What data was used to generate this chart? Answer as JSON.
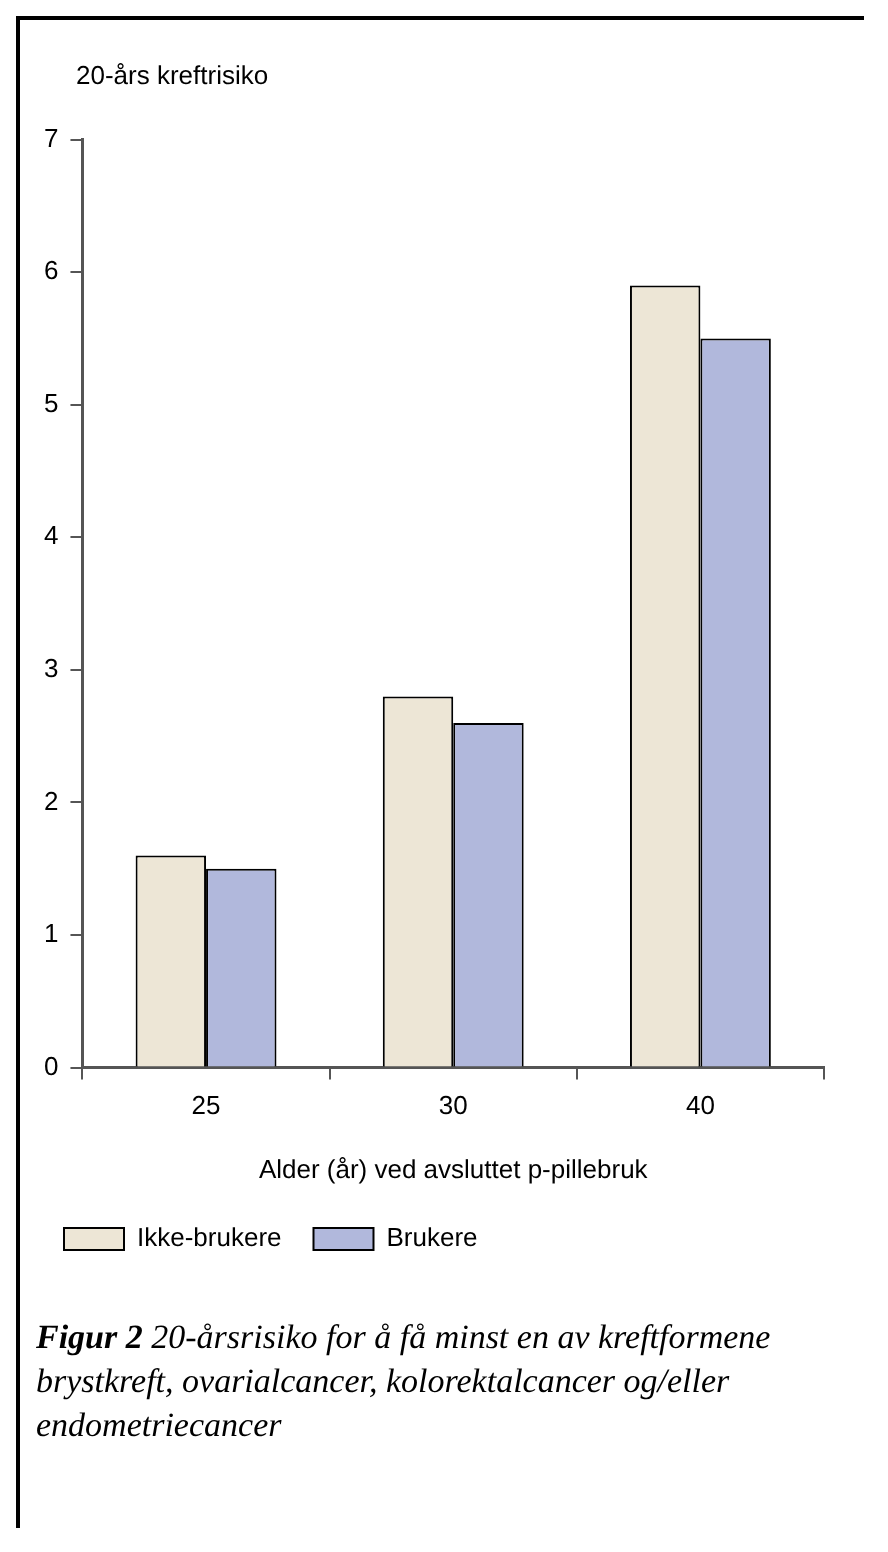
{
  "chart_data": {
    "type": "bar",
    "ylabel": "20-års kreftrisiko",
    "xlabel": "Alder (år) ved avsluttet p-pillebruk",
    "categories": [
      "25",
      "30",
      "40"
    ],
    "series": [
      {
        "name": "Ikke-brukere",
        "color": "#ede6d6",
        "values": [
          1.6,
          2.8,
          5.9
        ]
      },
      {
        "name": "Brukere",
        "color": "#b1b8dc",
        "values": [
          1.5,
          2.6,
          5.5
        ]
      }
    ],
    "ylim": [
      0,
      7
    ],
    "yticks": [
      0,
      1,
      2,
      3,
      4,
      5,
      6,
      7
    ],
    "grid": false,
    "legend": "bottom",
    "annotations": [
      "Figur 2 20-årsrisiko for å få minst en av kreftformene brystkreft, ovarialcancer, kolorektalcancer og/eller endometriecancer"
    ]
  }
}
